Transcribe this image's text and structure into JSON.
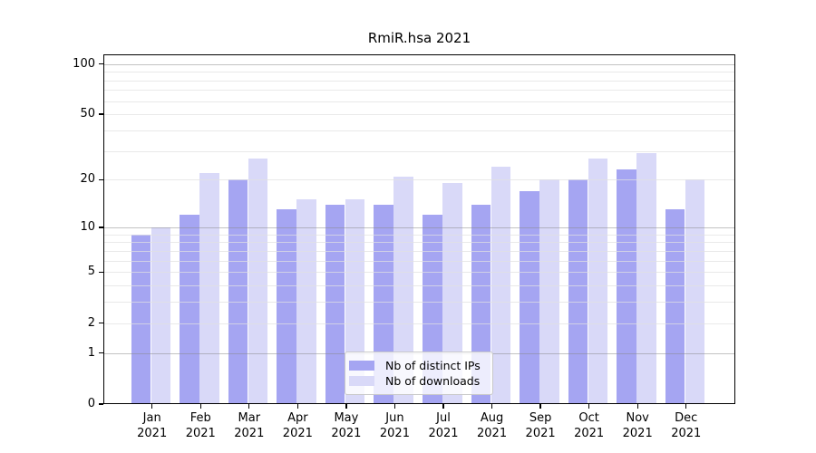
{
  "figure": {
    "title": "RmiR.hsa 2021",
    "background": "#ffffff"
  },
  "chart_data": {
    "type": "bar",
    "title": "RmiR.hsa 2021",
    "categories": [
      "Jan",
      "Feb",
      "Mar",
      "Apr",
      "May",
      "Jun",
      "Jul",
      "Aug",
      "Sep",
      "Oct",
      "Nov",
      "Dec"
    ],
    "category_year": "2021",
    "series": [
      {
        "name": "Nb of distinct IPs",
        "color": "#a5a5f2",
        "values": [
          9,
          12,
          20,
          13,
          14,
          14,
          12,
          14,
          17,
          20,
          23,
          13
        ]
      },
      {
        "name": "Nb of downloads",
        "color": "#d9d9f8",
        "values": [
          10,
          22,
          27,
          15,
          15,
          21,
          19,
          24,
          20,
          27,
          29,
          20
        ]
      }
    ],
    "yscale": "log1p",
    "y_ticks": [
      0,
      1,
      2,
      5,
      10,
      20,
      50,
      100
    ],
    "y_gridlines_major": [
      1,
      10,
      100
    ],
    "y_gridlines_minor": [
      2,
      3,
      4,
      5,
      6,
      7,
      8,
      9,
      20,
      30,
      40,
      50,
      60,
      70,
      80,
      90
    ],
    "ylim": [
      0,
      114
    ],
    "xlabel": "",
    "ylabel": "",
    "grid": true,
    "grid_above_bars": true,
    "legend_position": "lower center"
  },
  "colors": {
    "axis": "#000000",
    "grid_minor": "#e7e7e7",
    "grid_major": "#b5b5b5",
    "series1": "#a5a5f2",
    "series2": "#d9d9f8",
    "legend_border": "#c9c9c9",
    "legend_background": "rgba(255,255,255,0.8)"
  }
}
